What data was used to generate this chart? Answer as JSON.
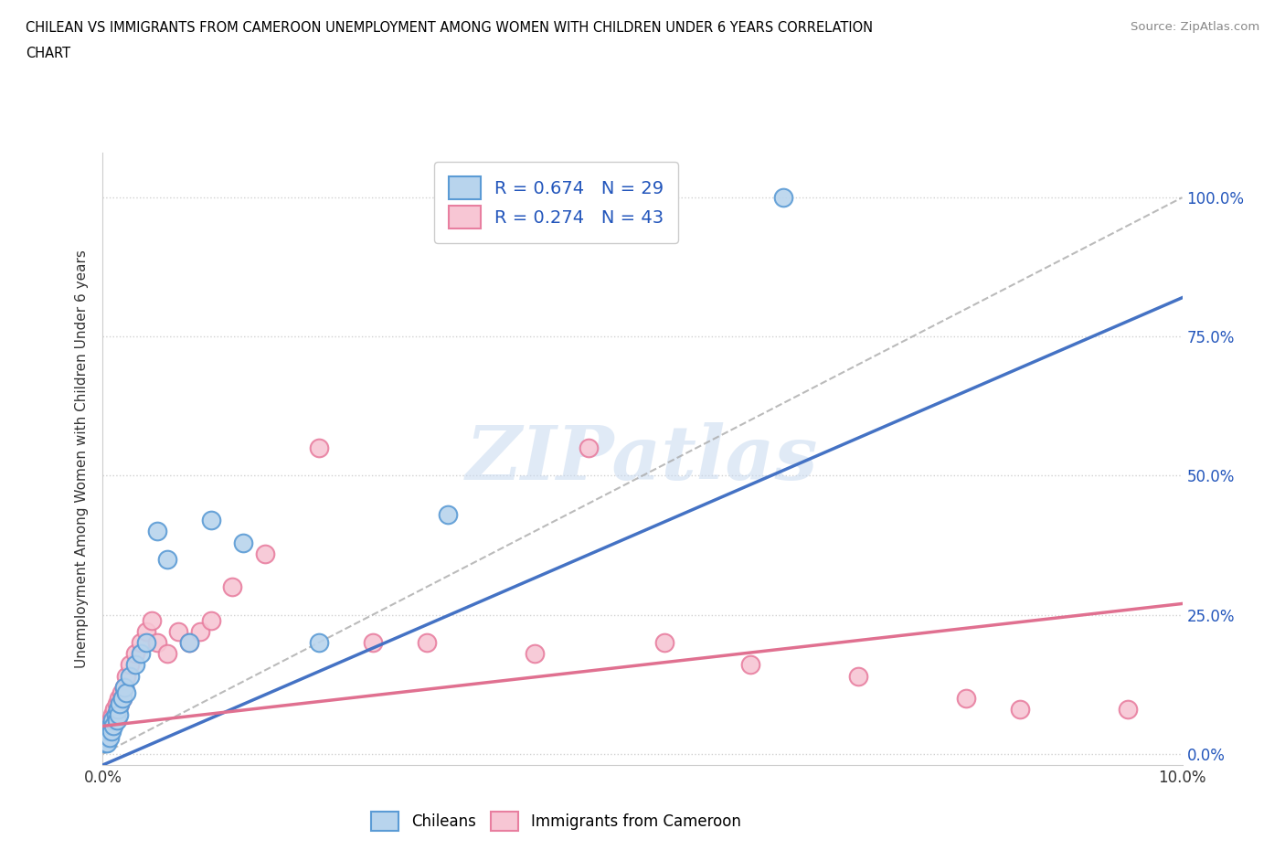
{
  "title_line1": "CHILEAN VS IMMIGRANTS FROM CAMEROON UNEMPLOYMENT AMONG WOMEN WITH CHILDREN UNDER 6 YEARS CORRELATION",
  "title_line2": "CHART",
  "source_text": "Source: ZipAtlas.com",
  "ylabel": "Unemployment Among Women with Children Under 6 years",
  "xlim": [
    0.0,
    0.1
  ],
  "ylim": [
    -0.02,
    1.08
  ],
  "yticks": [
    0.0,
    0.25,
    0.5,
    0.75,
    1.0
  ],
  "ytick_labels_left": [
    "",
    "",
    "",
    "",
    ""
  ],
  "ytick_labels_right": [
    "0.0%",
    "25.0%",
    "50.0%",
    "75.0%",
    "100.0%"
  ],
  "xtick_labels": [
    "0.0%",
    "",
    "",
    "",
    "",
    "10.0%"
  ],
  "chilean_color_face": "#b8d4ed",
  "chilean_color_edge": "#5b9bd5",
  "cameroon_color_face": "#f7c6d4",
  "cameroon_color_edge": "#e87fa0",
  "chilean_line_color": "#4472c4",
  "cameroon_line_color": "#e07090",
  "diag_line_color": "#aaaaaa",
  "chilean_R": 0.674,
  "chilean_N": 29,
  "cameroon_R": 0.274,
  "cameroon_N": 43,
  "watermark": "ZIPatlas",
  "legend_label_1": "Chileans",
  "legend_label_2": "Immigrants from Cameroon",
  "legend_text_color": "#2255bb",
  "right_tick_color": "#2255bb",
  "chilean_line_x0": 0.0,
  "chilean_line_y0": -0.02,
  "chilean_line_x1": 0.1,
  "chilean_line_y1": 0.82,
  "cameroon_line_x0": 0.0,
  "cameroon_line_y0": 0.05,
  "cameroon_line_x1": 0.1,
  "cameroon_line_y1": 0.27,
  "chilean_x": [
    0.0002,
    0.0003,
    0.0004,
    0.0005,
    0.0006,
    0.0007,
    0.0008,
    0.0009,
    0.001,
    0.0012,
    0.0013,
    0.0014,
    0.0015,
    0.0016,
    0.0018,
    0.002,
    0.0022,
    0.0025,
    0.003,
    0.0035,
    0.004,
    0.005,
    0.006,
    0.008,
    0.01,
    0.013,
    0.02,
    0.032,
    0.063
  ],
  "chilean_y": [
    0.02,
    0.03,
    0.02,
    0.04,
    0.03,
    0.05,
    0.04,
    0.06,
    0.05,
    0.07,
    0.06,
    0.08,
    0.07,
    0.09,
    0.1,
    0.12,
    0.11,
    0.14,
    0.16,
    0.18,
    0.2,
    0.4,
    0.35,
    0.2,
    0.42,
    0.38,
    0.2,
    0.43,
    1.0
  ],
  "cameroon_x": [
    0.0002,
    0.0003,
    0.0004,
    0.0005,
    0.0006,
    0.0007,
    0.0008,
    0.0009,
    0.001,
    0.0011,
    0.0012,
    0.0013,
    0.0014,
    0.0015,
    0.0016,
    0.0017,
    0.0018,
    0.002,
    0.0022,
    0.0025,
    0.003,
    0.0035,
    0.004,
    0.0045,
    0.005,
    0.006,
    0.007,
    0.008,
    0.009,
    0.01,
    0.012,
    0.015,
    0.02,
    0.025,
    0.03,
    0.04,
    0.045,
    0.052,
    0.06,
    0.07,
    0.08,
    0.085,
    0.095
  ],
  "cameroon_y": [
    0.03,
    0.04,
    0.03,
    0.05,
    0.04,
    0.06,
    0.05,
    0.07,
    0.06,
    0.08,
    0.07,
    0.09,
    0.08,
    0.1,
    0.09,
    0.11,
    0.1,
    0.12,
    0.14,
    0.16,
    0.18,
    0.2,
    0.22,
    0.24,
    0.2,
    0.18,
    0.22,
    0.2,
    0.22,
    0.24,
    0.3,
    0.36,
    0.55,
    0.2,
    0.2,
    0.18,
    0.55,
    0.2,
    0.16,
    0.14,
    0.1,
    0.08,
    0.08
  ]
}
